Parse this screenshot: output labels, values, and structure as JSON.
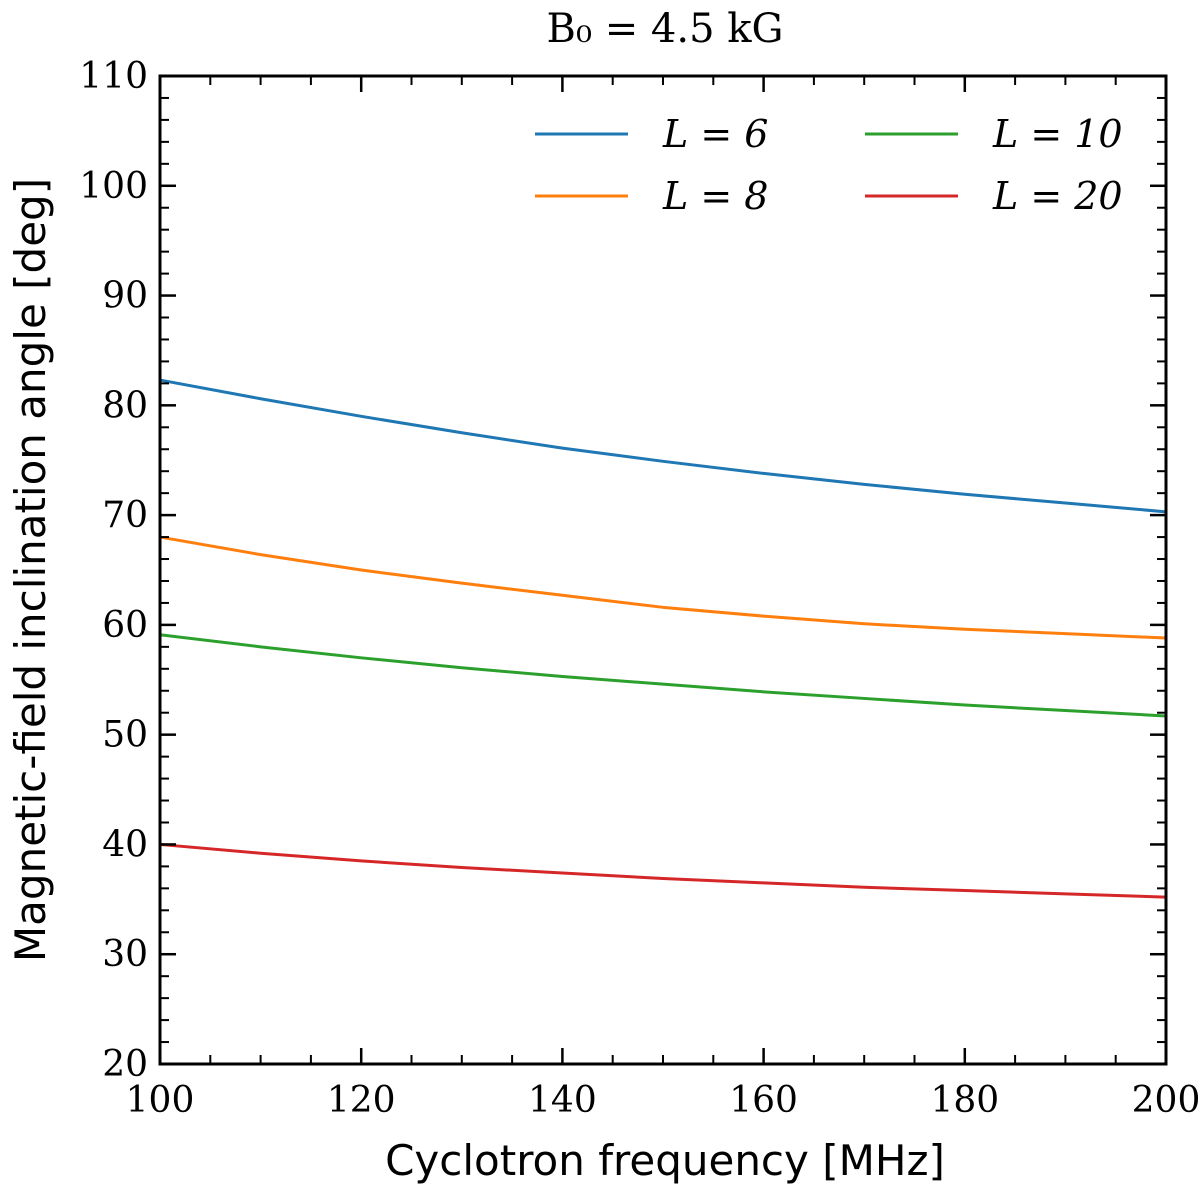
{
  "chart_data": {
    "type": "line",
    "title": "B₀ = 4.5 kG",
    "xlabel": "Cyclotron frequency [MHz]",
    "ylabel": "Magnetic-field inclination angle [deg]",
    "xlim": [
      100,
      200
    ],
    "ylim": [
      20,
      110
    ],
    "xticks": [
      100,
      120,
      140,
      160,
      180,
      200
    ],
    "yticks": [
      20,
      30,
      40,
      50,
      60,
      70,
      80,
      90,
      100,
      110
    ],
    "xtick_labels": [
      "100",
      "120",
      "140",
      "160",
      "180",
      "200"
    ],
    "ytick_labels": [
      "20",
      "30",
      "40",
      "50",
      "60",
      "70",
      "80",
      "90",
      "100",
      "110"
    ],
    "legend_position": "top-right",
    "grid": false,
    "series": [
      {
        "name": "L = 6",
        "color": "#1f77b4",
        "x": [
          100,
          110,
          120,
          130,
          140,
          150,
          160,
          170,
          180,
          190,
          200
        ],
        "y": [
          82.3,
          80.6,
          79.0,
          77.5,
          76.1,
          74.9,
          73.8,
          72.8,
          71.9,
          71.1,
          70.3
        ]
      },
      {
        "name": "L = 8",
        "color": "#ff7f0e",
        "x": [
          100,
          110,
          120,
          130,
          140,
          150,
          160,
          170,
          180,
          190,
          200
        ],
        "y": [
          68.0,
          66.4,
          65.0,
          63.8,
          62.7,
          61.6,
          60.8,
          60.1,
          59.6,
          59.2,
          58.8
        ]
      },
      {
        "name": "L = 10",
        "color": "#2ca02c",
        "x": [
          100,
          110,
          120,
          130,
          140,
          150,
          160,
          170,
          180,
          190,
          200
        ],
        "y": [
          59.1,
          58.0,
          57.0,
          56.1,
          55.3,
          54.6,
          53.9,
          53.3,
          52.7,
          52.2,
          51.7
        ]
      },
      {
        "name": "L = 20",
        "color": "#d62728",
        "x": [
          100,
          110,
          120,
          130,
          140,
          150,
          160,
          170,
          180,
          190,
          200
        ],
        "y": [
          40.0,
          39.2,
          38.5,
          37.9,
          37.4,
          36.9,
          36.5,
          36.1,
          35.8,
          35.5,
          35.2
        ]
      }
    ]
  }
}
